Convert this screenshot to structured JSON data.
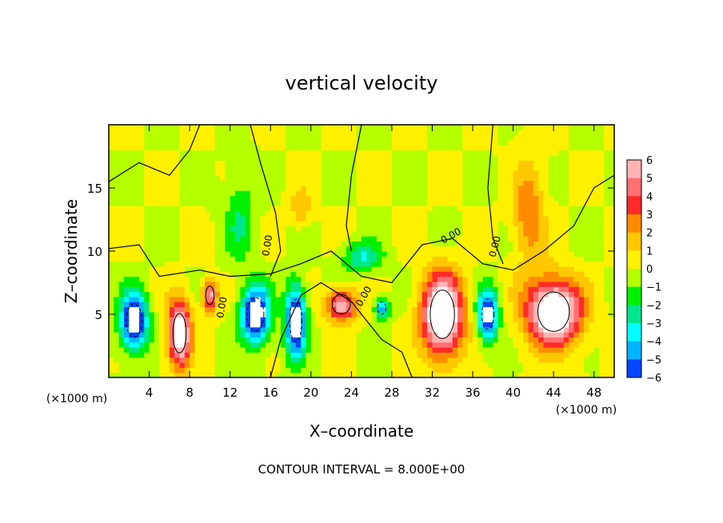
{
  "chart_data": {
    "type": "heatmap",
    "title": "vertical velocity",
    "xlabel": "X–coordinate",
    "ylabel": "Z–coordinate",
    "x_unit": "(×1000 m)",
    "footer": "CONTOUR INTERVAL = 8.000E+00",
    "xlim": [
      0,
      50
    ],
    "ylim": [
      0,
      20
    ],
    "x_ticks": [
      "4",
      "8",
      "12",
      "16",
      "20",
      "24",
      "28",
      "32",
      "36",
      "40",
      "44",
      "48"
    ],
    "x_tick_values": [
      4,
      8,
      12,
      16,
      20,
      24,
      28,
      32,
      36,
      40,
      44,
      48
    ],
    "y_ticks": [
      "5",
      "10",
      "15"
    ],
    "y_tick_values": [
      5,
      10,
      15
    ],
    "colorbar": {
      "labels": [
        "6",
        "5",
        "4",
        "3",
        "2",
        "1",
        "0",
        "−1",
        "−2",
        "−3",
        "−4",
        "−5",
        "−6"
      ],
      "min": -6,
      "max": 6,
      "colors": [
        "#ffb4b4",
        "#ff7070",
        "#ff2a2a",
        "#ff8c00",
        "#ffc800",
        "#fff000",
        "#b4ff00",
        "#00f000",
        "#00e68c",
        "#00ffff",
        "#00b4ff",
        "#0046ff",
        "#0000c8",
        "#6e00b4",
        "#ffffff"
      ]
    },
    "contour_labels": [
      "0.00",
      "0.00",
      "0.00",
      "0.00",
      "0.00"
    ],
    "features": [
      {
        "x": 2.5,
        "z": 4.5,
        "w": -8,
        "sx": 1.3,
        "sz": 2.2
      },
      {
        "x": 7.0,
        "z": 3.5,
        "w": 8,
        "sx": 1.1,
        "sz": 2.6
      },
      {
        "x": 10.0,
        "z": 6.5,
        "w": 6,
        "sx": 0.7,
        "sz": 1.2
      },
      {
        "x": 14.5,
        "z": 5.0,
        "w": -8,
        "sx": 1.4,
        "sz": 2.2
      },
      {
        "x": 18.5,
        "z": 4.5,
        "w": -8,
        "sx": 1.0,
        "sz": 2.8
      },
      {
        "x": 23.0,
        "z": 5.8,
        "w": 6,
        "sx": 1.5,
        "sz": 1.3
      },
      {
        "x": 27.0,
        "z": 5.5,
        "w": -5,
        "sx": 0.7,
        "sz": 0.8
      },
      {
        "x": 33.0,
        "z": 5.0,
        "w": 9,
        "sx": 2.0,
        "sz": 3.2
      },
      {
        "x": 37.5,
        "z": 5.0,
        "w": -7,
        "sx": 1.0,
        "sz": 2.0
      },
      {
        "x": 44.0,
        "z": 5.2,
        "w": 9,
        "sx": 2.6,
        "sz": 2.6
      },
      {
        "x": 41.5,
        "z": 13.0,
        "w": 3,
        "sx": 1.5,
        "sz": 4.0
      },
      {
        "x": 19.0,
        "z": 13.5,
        "w": 2,
        "sx": 1.0,
        "sz": 1.5
      },
      {
        "x": 13.0,
        "z": 12.5,
        "w": -2,
        "sx": 1.5,
        "sz": 3.5
      },
      {
        "x": 25.0,
        "z": 9.5,
        "w": -3,
        "sx": 2.0,
        "sz": 1.2
      }
    ]
  }
}
